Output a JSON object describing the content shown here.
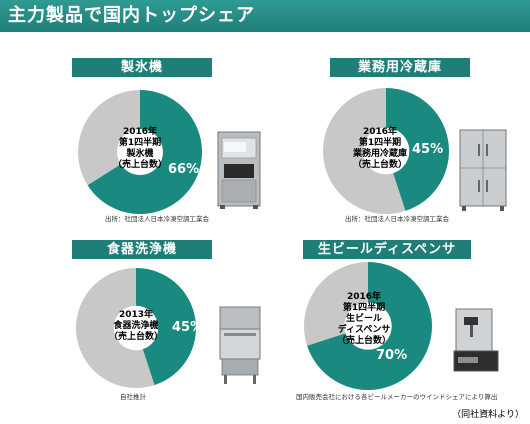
{
  "header": {
    "title": "主力製品で国内トップシェア"
  },
  "colors": {
    "accent": "#1f7f78",
    "share": "#1a8a80",
    "other": "#c8c8c8"
  },
  "chart_data": [
    {
      "type": "pie",
      "title": "製氷機",
      "center_label": [
        "2016年",
        "第1四半期",
        "製氷機",
        "（売上台数）"
      ],
      "value": 66,
      "value_label": "66%",
      "source": "出所：社団法人日本冷凍空調工業会",
      "image_icon": "ice-maker"
    },
    {
      "type": "pie",
      "title": "業務用冷蔵庫",
      "center_label": [
        "2016年",
        "第1四半期",
        "業務用冷蔵庫",
        "（売上台数）"
      ],
      "value": 45,
      "value_label": "45%",
      "source": "出所：社団法人日本冷凍空調工業会",
      "image_icon": "refrigerator"
    },
    {
      "type": "pie",
      "title": "食器洗浄機",
      "center_label": [
        "2013年",
        "食器洗浄機",
        "（売上台数）"
      ],
      "value": 45,
      "value_label": "45%",
      "source": "自社推計",
      "image_icon": "dishwasher"
    },
    {
      "type": "pie",
      "title": "生ビールディスペンサ",
      "center_label": [
        "2016年",
        "第1四半期",
        "生ビール",
        "ディスペンサ",
        "（売上台数）"
      ],
      "value": 70,
      "value_label": "70%",
      "source": "国内販売会社における各ビールメーカーのウインドシェアにより算出",
      "image_icon": "beer-dispenser"
    }
  ],
  "footer": {
    "note": "（同社資料より）"
  }
}
